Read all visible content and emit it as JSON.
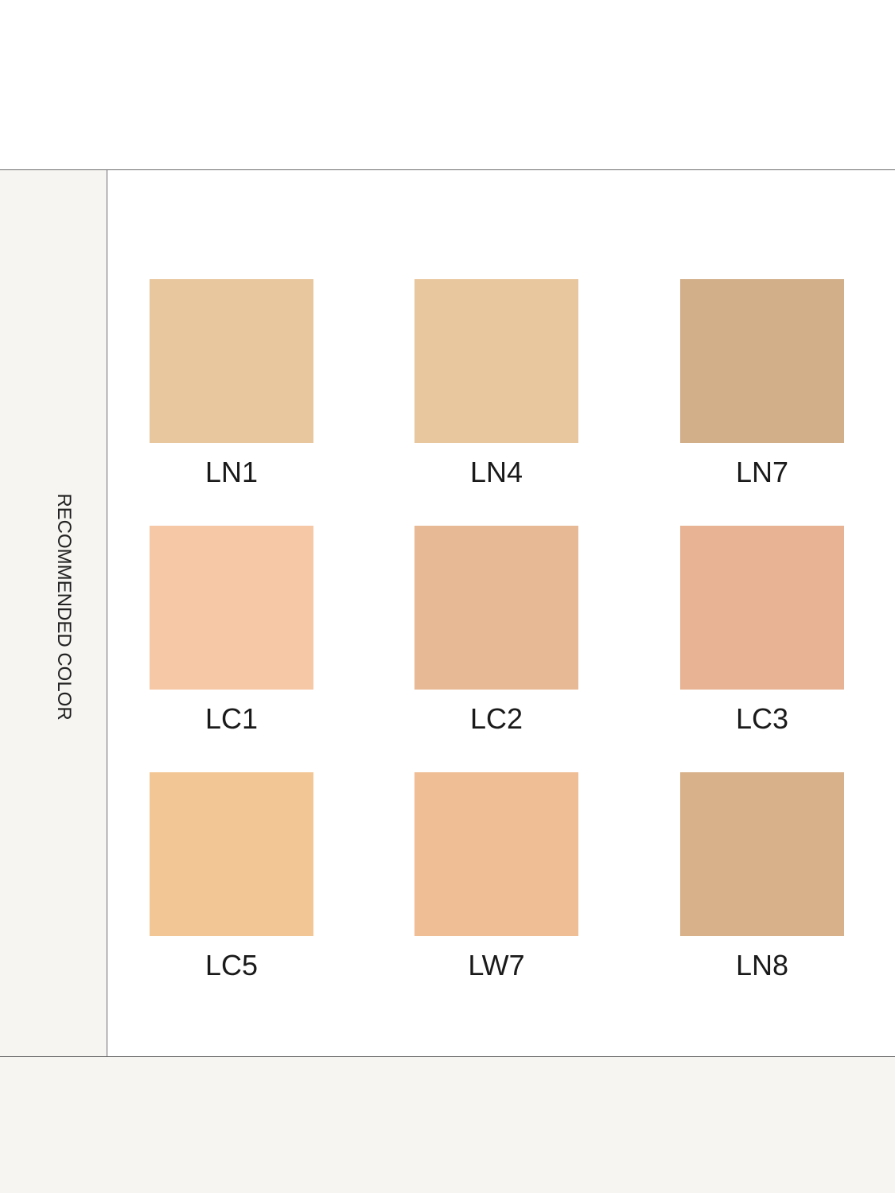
{
  "section_label": "RECOMMENDED COLOR",
  "swatches": [
    {
      "label": "LN1",
      "color": "#e8c69e"
    },
    {
      "label": "LN4",
      "color": "#e8c79f"
    },
    {
      "label": "LN7",
      "color": "#d2ae89"
    },
    {
      "label": "LC1",
      "color": "#f6c8a6"
    },
    {
      "label": "LC2",
      "color": "#e8b995"
    },
    {
      "label": "LC3",
      "color": "#e7b394"
    },
    {
      "label": "LC5",
      "color": "#f3c795"
    },
    {
      "label": "LW7",
      "color": "#f0be95"
    },
    {
      "label": "LN8",
      "color": "#d8b08a"
    }
  ]
}
